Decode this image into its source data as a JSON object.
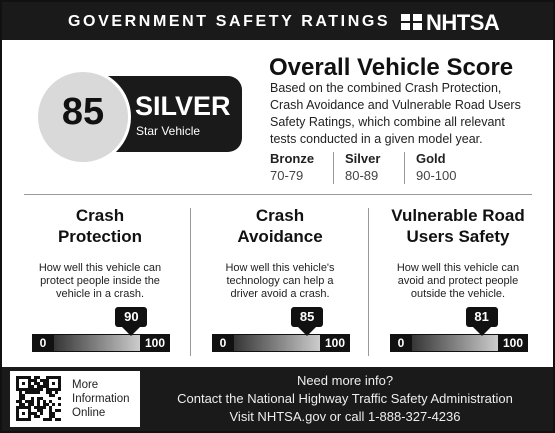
{
  "header": {
    "title": "GOVERNMENT SAFETY RATINGS",
    "logo": "NHTSA"
  },
  "score": {
    "value": 85,
    "rating": "SILVER",
    "sublabel": "Star Vehicle"
  },
  "overall": {
    "title": "Overall Vehicle Score",
    "description_lines": [
      "Based on the combined Crash Protection,",
      "Crash Avoidance and Vulnerable Road Users",
      "Safety Ratings, which combine all relevant",
      "tests conducted in a given model year."
    ]
  },
  "tiers": [
    {
      "name": "Bronze",
      "range": "70-79"
    },
    {
      "name": "Silver",
      "range": "80-89"
    },
    {
      "name": "Gold",
      "range": "90-100"
    }
  ],
  "categories": [
    {
      "title_lines": [
        "Crash",
        "Protection"
      ],
      "description_lines": [
        "How well this vehicle can",
        "protect people inside the",
        "vehicle in a crash."
      ],
      "score": 90,
      "min": 0,
      "max": 100
    },
    {
      "title_lines": [
        "Crash",
        "Avoidance"
      ],
      "description_lines": [
        "How well this vehicle's",
        "technology can help a",
        "driver avoid a crash."
      ],
      "score": 85,
      "min": 0,
      "max": 100
    },
    {
      "title_lines": [
        "Vulnerable Road",
        "Users Safety"
      ],
      "description_lines": [
        "How well this vehicle can",
        "avoid and protect people",
        "outside the vehicle."
      ],
      "score": 81,
      "min": 0,
      "max": 100
    }
  ],
  "footer": {
    "qr_label_lines": [
      "More",
      "Information",
      "Online"
    ],
    "contact_lines": [
      "Need more info?",
      "Contact the National Highway Traffic Safety Administration",
      "Visit NHTSA.gov or call 1-888-327-4236"
    ]
  }
}
